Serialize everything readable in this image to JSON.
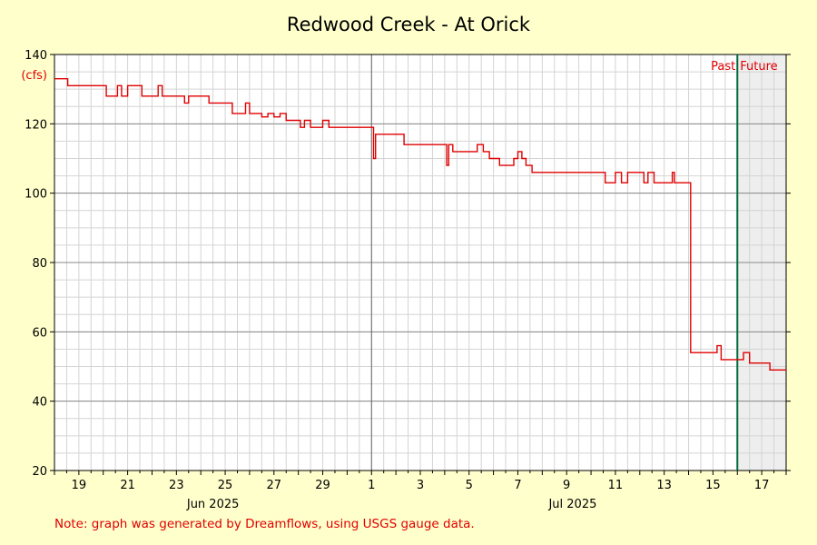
{
  "chart_data": {
    "type": "line",
    "title": "Redwood Creek - At Orick",
    "unit_label": "(cfs)",
    "ylabel": "",
    "xlabel": "",
    "ylim": [
      20,
      140
    ],
    "y_ticks": [
      20,
      40,
      60,
      80,
      100,
      120,
      140
    ],
    "x_range": [
      "2025-06-18",
      "2025-07-18"
    ],
    "x_tick_labels": [
      "19",
      "21",
      "23",
      "25",
      "27",
      "29",
      "1",
      "3",
      "5",
      "7",
      "9",
      "11",
      "13",
      "15",
      "17"
    ],
    "month_labels": [
      "Jun 2025",
      "Jul 2025"
    ],
    "grid": true,
    "past_label": "Past",
    "future_label": "Future",
    "now_marker": "2025-07-16",
    "series": [
      {
        "color": "#e00000",
        "points": [
          [
            "2025-06-18",
            133
          ],
          [
            "2025-06-18T12:00",
            133
          ],
          [
            "2025-06-18T13:00",
            131
          ],
          [
            "2025-06-19",
            131
          ],
          [
            "2025-06-20",
            131
          ],
          [
            "2025-06-20T03:00",
            128
          ],
          [
            "2025-06-20T12:00",
            128
          ],
          [
            "2025-06-20T14:00",
            131
          ],
          [
            "2025-06-20T18:00",
            128
          ],
          [
            "2025-06-21",
            131
          ],
          [
            "2025-06-21T12:00",
            131
          ],
          [
            "2025-06-21T14:00",
            128
          ],
          [
            "2025-06-22",
            128
          ],
          [
            "2025-06-22T06:00",
            131
          ],
          [
            "2025-06-22T10:00",
            128
          ],
          [
            "2025-06-23",
            128
          ],
          [
            "2025-06-23T06:00",
            128
          ],
          [
            "2025-06-23T08:00",
            126
          ],
          [
            "2025-06-23T12:00",
            128
          ],
          [
            "2025-06-24",
            128
          ],
          [
            "2025-06-24T08:00",
            126
          ],
          [
            "2025-06-24T14:00",
            126
          ],
          [
            "2025-06-25",
            126
          ],
          [
            "2025-06-25T07:00",
            123
          ],
          [
            "2025-06-25T18:00",
            123
          ],
          [
            "2025-06-25T20:00",
            126
          ],
          [
            "2025-06-26",
            123
          ],
          [
            "2025-06-26T12:00",
            122
          ],
          [
            "2025-06-26T18:00",
            123
          ],
          [
            "2025-06-27",
            122
          ],
          [
            "2025-06-27T06:00",
            123
          ],
          [
            "2025-06-27T12:00",
            121
          ],
          [
            "2025-06-28",
            121
          ],
          [
            "2025-06-28T02:00",
            119
          ],
          [
            "2025-06-28T06:00",
            121
          ],
          [
            "2025-06-28T12:00",
            119
          ],
          [
            "2025-06-29",
            121
          ],
          [
            "2025-06-29T06:00",
            119
          ],
          [
            "2025-06-29T12:00",
            119
          ],
          [
            "2025-06-30",
            119
          ],
          [
            "2025-06-30T06:00",
            119
          ],
          [
            "2025-07-01",
            119
          ],
          [
            "2025-07-01T02:00",
            110
          ],
          [
            "2025-07-01T04:00",
            117
          ],
          [
            "2025-07-01T12:00",
            117
          ],
          [
            "2025-07-02",
            117
          ],
          [
            "2025-07-02T06:00",
            117
          ],
          [
            "2025-07-02T08:00",
            114
          ],
          [
            "2025-07-03",
            114
          ],
          [
            "2025-07-03T12:00",
            114
          ],
          [
            "2025-07-04",
            114
          ],
          [
            "2025-07-04T02:00",
            108
          ],
          [
            "2025-07-04T04:00",
            114
          ],
          [
            "2025-07-04T08:00",
            112
          ],
          [
            "2025-07-05",
            112
          ],
          [
            "2025-07-05T06:00",
            112
          ],
          [
            "2025-07-05T08:00",
            114
          ],
          [
            "2025-07-05T14:00",
            112
          ],
          [
            "2025-07-05T20:00",
            110
          ],
          [
            "2025-07-06",
            110
          ],
          [
            "2025-07-06T06:00",
            108
          ],
          [
            "2025-07-06T18:00",
            108
          ],
          [
            "2025-07-06T20:00",
            110
          ],
          [
            "2025-07-07",
            112
          ],
          [
            "2025-07-07T04:00",
            110
          ],
          [
            "2025-07-07T08:00",
            108
          ],
          [
            "2025-07-07T14:00",
            106
          ],
          [
            "2025-07-08",
            106
          ],
          [
            "2025-07-09",
            106
          ],
          [
            "2025-07-10",
            106
          ],
          [
            "2025-07-10T12:00",
            106
          ],
          [
            "2025-07-10T14:00",
            103
          ],
          [
            "2025-07-11",
            106
          ],
          [
            "2025-07-11T06:00",
            103
          ],
          [
            "2025-07-11T12:00",
            106
          ],
          [
            "2025-07-12",
            106
          ],
          [
            "2025-07-12T04:00",
            103
          ],
          [
            "2025-07-12T08:00",
            106
          ],
          [
            "2025-07-12T14:00",
            103
          ],
          [
            "2025-07-13",
            103
          ],
          [
            "2025-07-13T08:00",
            106
          ],
          [
            "2025-07-13T10:00",
            103
          ],
          [
            "2025-07-13T12:00",
            103
          ],
          [
            "2025-07-14",
            103
          ],
          [
            "2025-07-14T02:00",
            54
          ],
          [
            "2025-07-14T12:00",
            54
          ],
          [
            "2025-07-15",
            54
          ],
          [
            "2025-07-15T04:00",
            56
          ],
          [
            "2025-07-15T08:00",
            52
          ],
          [
            "2025-07-15T18:00",
            52
          ],
          [
            "2025-07-16",
            52
          ],
          [
            "2025-07-16T06:00",
            54
          ],
          [
            "2025-07-16T12:00",
            51
          ],
          [
            "2025-07-17",
            51
          ],
          [
            "2025-07-17T06:00",
            51
          ],
          [
            "2025-07-17T08:00",
            49
          ],
          [
            "2025-07-18",
            49
          ]
        ]
      }
    ]
  },
  "note": "Note: graph was generated by Dreamflows, using USGS gauge data."
}
